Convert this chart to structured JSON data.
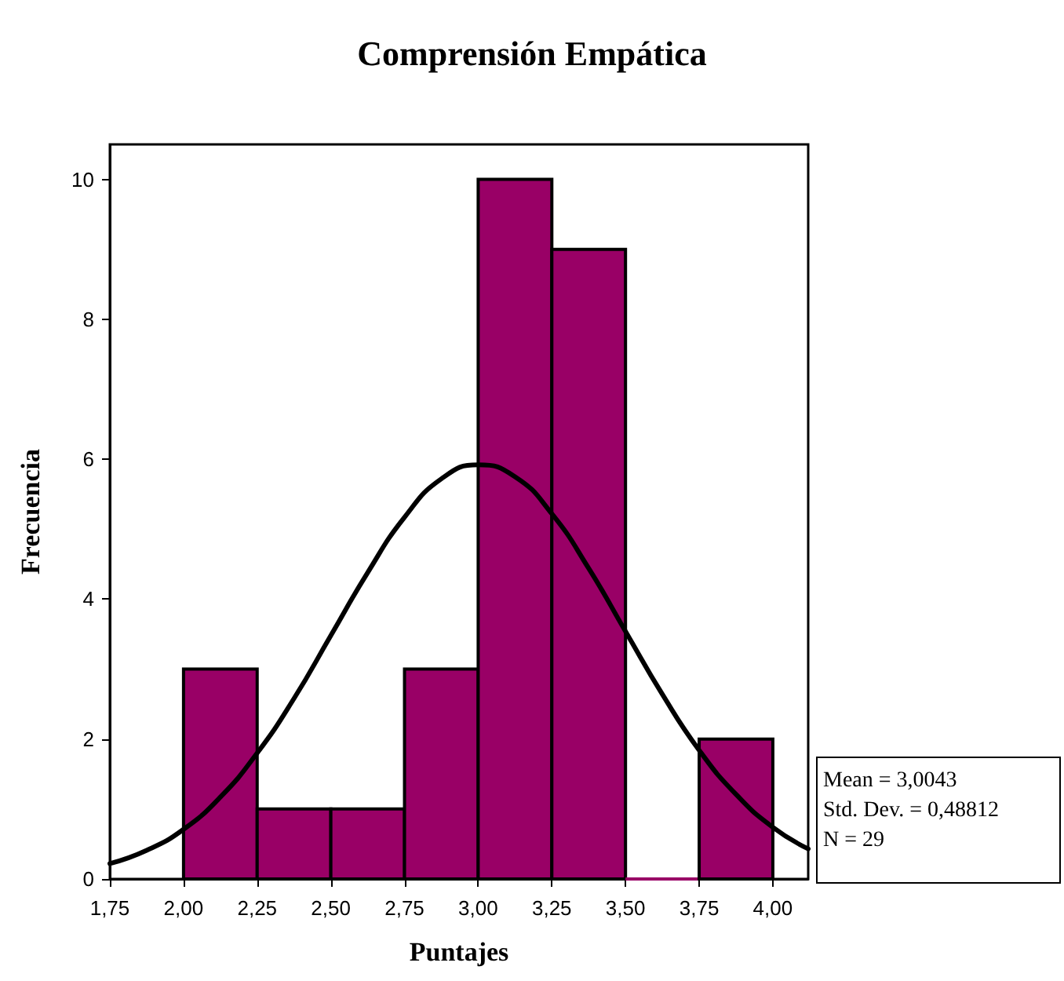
{
  "chart_data": {
    "type": "histogram",
    "title": "Comprensión Empática",
    "xlabel": "Puntajes",
    "ylabel": "Frecuencia",
    "bins": [
      2.0,
      2.25,
      2.5,
      2.75,
      3.0,
      3.25,
      3.5,
      3.75,
      4.0
    ],
    "series": [
      {
        "type": "histogram",
        "color": "#990066",
        "values": [
          3,
          1,
          1,
          3,
          10,
          9,
          0,
          2
        ]
      },
      {
        "type": "line",
        "color": "#000000",
        "x": [
          1.75,
          1.875,
          2.0,
          2.125,
          2.25,
          2.375,
          2.5,
          2.625,
          2.75,
          2.875,
          3.0,
          3.125,
          3.25,
          3.375,
          3.5,
          3.625,
          3.75,
          3.875,
          4.0,
          4.12
        ],
        "values": [
          0.22,
          0.41,
          0.71,
          1.17,
          1.8,
          2.58,
          3.48,
          4.38,
          5.17,
          5.72,
          5.92,
          5.75,
          5.22,
          4.44,
          3.54,
          2.64,
          1.84,
          1.21,
          0.74,
          0.43
        ]
      }
    ],
    "xlim": [
      1.75,
      4.12
    ],
    "ylim": [
      0,
      10.5
    ],
    "xticks": [
      {
        "value": 1.75,
        "label": "1,75"
      },
      {
        "value": 2.0,
        "label": "2,00"
      },
      {
        "value": 2.25,
        "label": "2,25"
      },
      {
        "value": 2.5,
        "label": "2,50"
      },
      {
        "value": 2.75,
        "label": "2,75"
      },
      {
        "value": 3.0,
        "label": "3,00"
      },
      {
        "value": 3.25,
        "label": "3,25"
      },
      {
        "value": 3.5,
        "label": "3,50"
      },
      {
        "value": 3.75,
        "label": "3,75"
      },
      {
        "value": 4.0,
        "label": "4,00"
      }
    ],
    "yticks": [
      0,
      2,
      4,
      6,
      8,
      10
    ],
    "grid": false,
    "marker": "none",
    "line_style": "solid",
    "annotations": [
      "Mean = 3,0043",
      "Std. Dev. = 0,48812",
      "N = 29"
    ]
  }
}
